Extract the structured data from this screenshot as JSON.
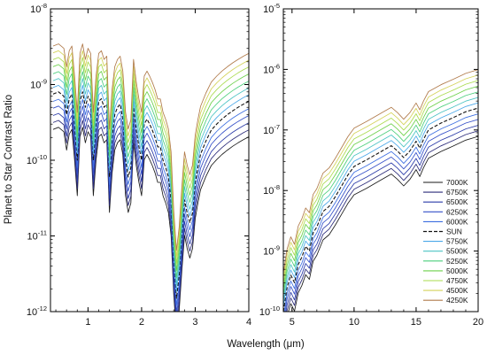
{
  "ylabel": "Planet to Star Contrast Ratio",
  "xlabel": "Wavelength (μm)",
  "chart_data": [
    {
      "type": "line",
      "panel": "left",
      "xlim": [
        0.3,
        4.0
      ],
      "ylim": [
        1e-12,
        1e-08
      ],
      "yscale": "log",
      "xticks": [
        1,
        2,
        3,
        4
      ],
      "xtick_labels": [
        "1",
        "2",
        "3",
        "4"
      ],
      "yticks_exp": [
        -12,
        -11,
        -10,
        -9,
        -8
      ],
      "grid": false,
      "x": [
        0.35,
        0.45,
        0.55,
        0.6,
        0.65,
        0.7,
        0.75,
        0.8,
        0.85,
        0.9,
        0.95,
        1.0,
        1.05,
        1.1,
        1.15,
        1.2,
        1.25,
        1.3,
        1.35,
        1.4,
        1.45,
        1.5,
        1.55,
        1.6,
        1.65,
        1.7,
        1.75,
        1.8,
        1.85,
        1.9,
        1.95,
        2.0,
        2.05,
        2.1,
        2.15,
        2.2,
        2.25,
        2.3,
        2.35,
        2.4,
        2.45,
        2.5,
        2.55,
        2.6,
        2.65,
        2.7,
        2.75,
        2.8,
        2.85,
        2.9,
        2.95,
        3.0,
        3.05,
        3.1,
        3.2,
        3.3,
        3.4,
        3.5,
        3.6,
        3.7,
        3.8,
        3.9,
        4.0
      ],
      "sun_y": [
        7.5e-10,
        8e-10,
        7e-10,
        4e-10,
        6.5e-10,
        7.5e-10,
        3e-10,
        1e-10,
        6e-10,
        8e-10,
        5e-10,
        7e-10,
        6e-10,
        1e-10,
        3e-10,
        6e-10,
        6.5e-10,
        5e-10,
        5.5e-10,
        6e-11,
        2e-10,
        4e-10,
        5e-10,
        5.5e-10,
        3.5e-10,
        1e-10,
        6e-11,
        8e-11,
        5e-10,
        2.5e-10,
        1.5e-10,
        1e-10,
        3e-10,
        3.5e-10,
        3e-10,
        2.5e-10,
        2e-10,
        1.5e-10,
        1.5e-10,
        1e-10,
        8e-11,
        6e-11,
        3e-11,
        5e-12,
        1.5e-12,
        3e-12,
        1e-11,
        3e-11,
        2e-11,
        1.5e-11,
        2e-11,
        5e-11,
        8e-11,
        1.2e-10,
        1.8e-10,
        2.5e-10,
        3e-10,
        3.5e-10,
        4e-10,
        4.5e-10,
        5e-10,
        5.5e-10,
        6e-10
      ]
    },
    {
      "type": "line",
      "panel": "right",
      "xlim": [
        4.3,
        20.0
      ],
      "ylim": [
        1e-10,
        1e-05
      ],
      "yscale": "log",
      "xticks": [
        5,
        10,
        15,
        20
      ],
      "xtick_labels": [
        "5",
        "10",
        "15",
        "20"
      ],
      "yticks_exp": [
        -10,
        -9,
        -8,
        -7,
        -6,
        -5
      ],
      "grid": false,
      "x": [
        4.3,
        4.6,
        4.9,
        5.2,
        5.5,
        5.8,
        6.1,
        6.4,
        6.7,
        7.0,
        7.5,
        8.0,
        8.5,
        9.0,
        9.5,
        10.0,
        11.0,
        12.0,
        13.0,
        13.5,
        14.0,
        14.5,
        15.0,
        15.3,
        15.6,
        16.0,
        17.0,
        18.0,
        19.0,
        20.0
      ],
      "sun_y": [
        1e-10,
        2.5e-10,
        4e-10,
        3e-10,
        6e-10,
        8e-10,
        1.2e-09,
        1e-09,
        2e-09,
        2.5e-09,
        4.5e-09,
        5.5e-09,
        8e-09,
        1.2e-08,
        1.8e-08,
        2.5e-08,
        3.2e-08,
        4.2e-08,
        5.5e-08,
        4.5e-08,
        3.5e-08,
        4.5e-08,
        6.5e-08,
        5e-08,
        7e-08,
        1e-07,
        1.3e-07,
        1.6e-07,
        2e-07,
        2.3e-07
      ]
    }
  ],
  "series": [
    {
      "name": "7000K",
      "factor": 0.34,
      "color": "#1a1a1a",
      "dashed": false
    },
    {
      "name": "6750K",
      "factor": 0.42,
      "color": "#2c2c7a",
      "dashed": false
    },
    {
      "name": "6500K",
      "factor": 0.52,
      "color": "#2a3aa8",
      "dashed": false
    },
    {
      "name": "6250K",
      "factor": 0.65,
      "color": "#3550c8",
      "dashed": false
    },
    {
      "name": "6000K",
      "factor": 0.8,
      "color": "#3c6ee0",
      "dashed": false
    },
    {
      "name": "SUN",
      "factor": 1.0,
      "color": "#111111",
      "dashed": true
    },
    {
      "name": "5750K",
      "factor": 1.22,
      "color": "#4aa8e8",
      "dashed": false
    },
    {
      "name": "5500K",
      "factor": 1.5,
      "color": "#4cc4c4",
      "dashed": false
    },
    {
      "name": "5250K",
      "factor": 1.85,
      "color": "#4ccf7c",
      "dashed": false
    },
    {
      "name": "5000K",
      "factor": 2.3,
      "color": "#6cd04a",
      "dashed": false
    },
    {
      "name": "4750K",
      "factor": 2.85,
      "color": "#aadb4e",
      "dashed": false
    },
    {
      "name": "4500K",
      "factor": 3.5,
      "color": "#d4d25a",
      "dashed": false
    },
    {
      "name": "4250K",
      "factor": 4.3,
      "color": "#b07a4a",
      "dashed": false
    }
  ]
}
